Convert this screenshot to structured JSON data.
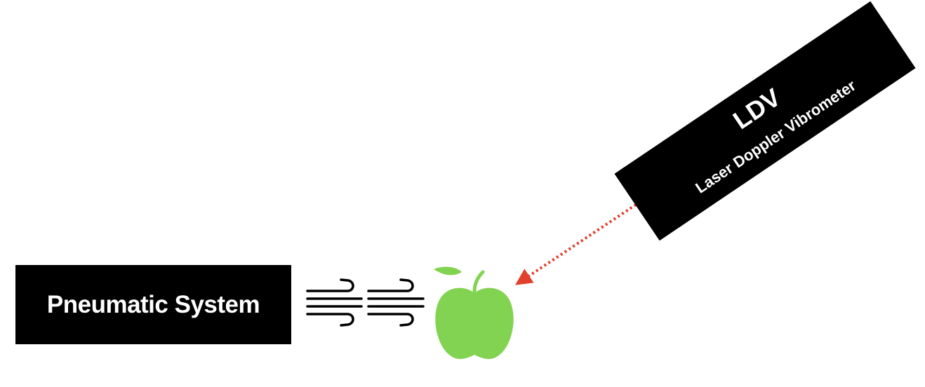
{
  "pneumatic": {
    "label": "Pneumatic System"
  },
  "ldv": {
    "title": "LDV",
    "subtitle": "Laser Doppler Vibrometer"
  },
  "icons": {
    "wind": "wind-icon",
    "fruit": "apple-icon",
    "beam": "laser-beam-arrow"
  },
  "colors": {
    "box": "#000000",
    "box_text": "#ffffff",
    "apple": "#82d352",
    "laser": "#e0402c"
  }
}
